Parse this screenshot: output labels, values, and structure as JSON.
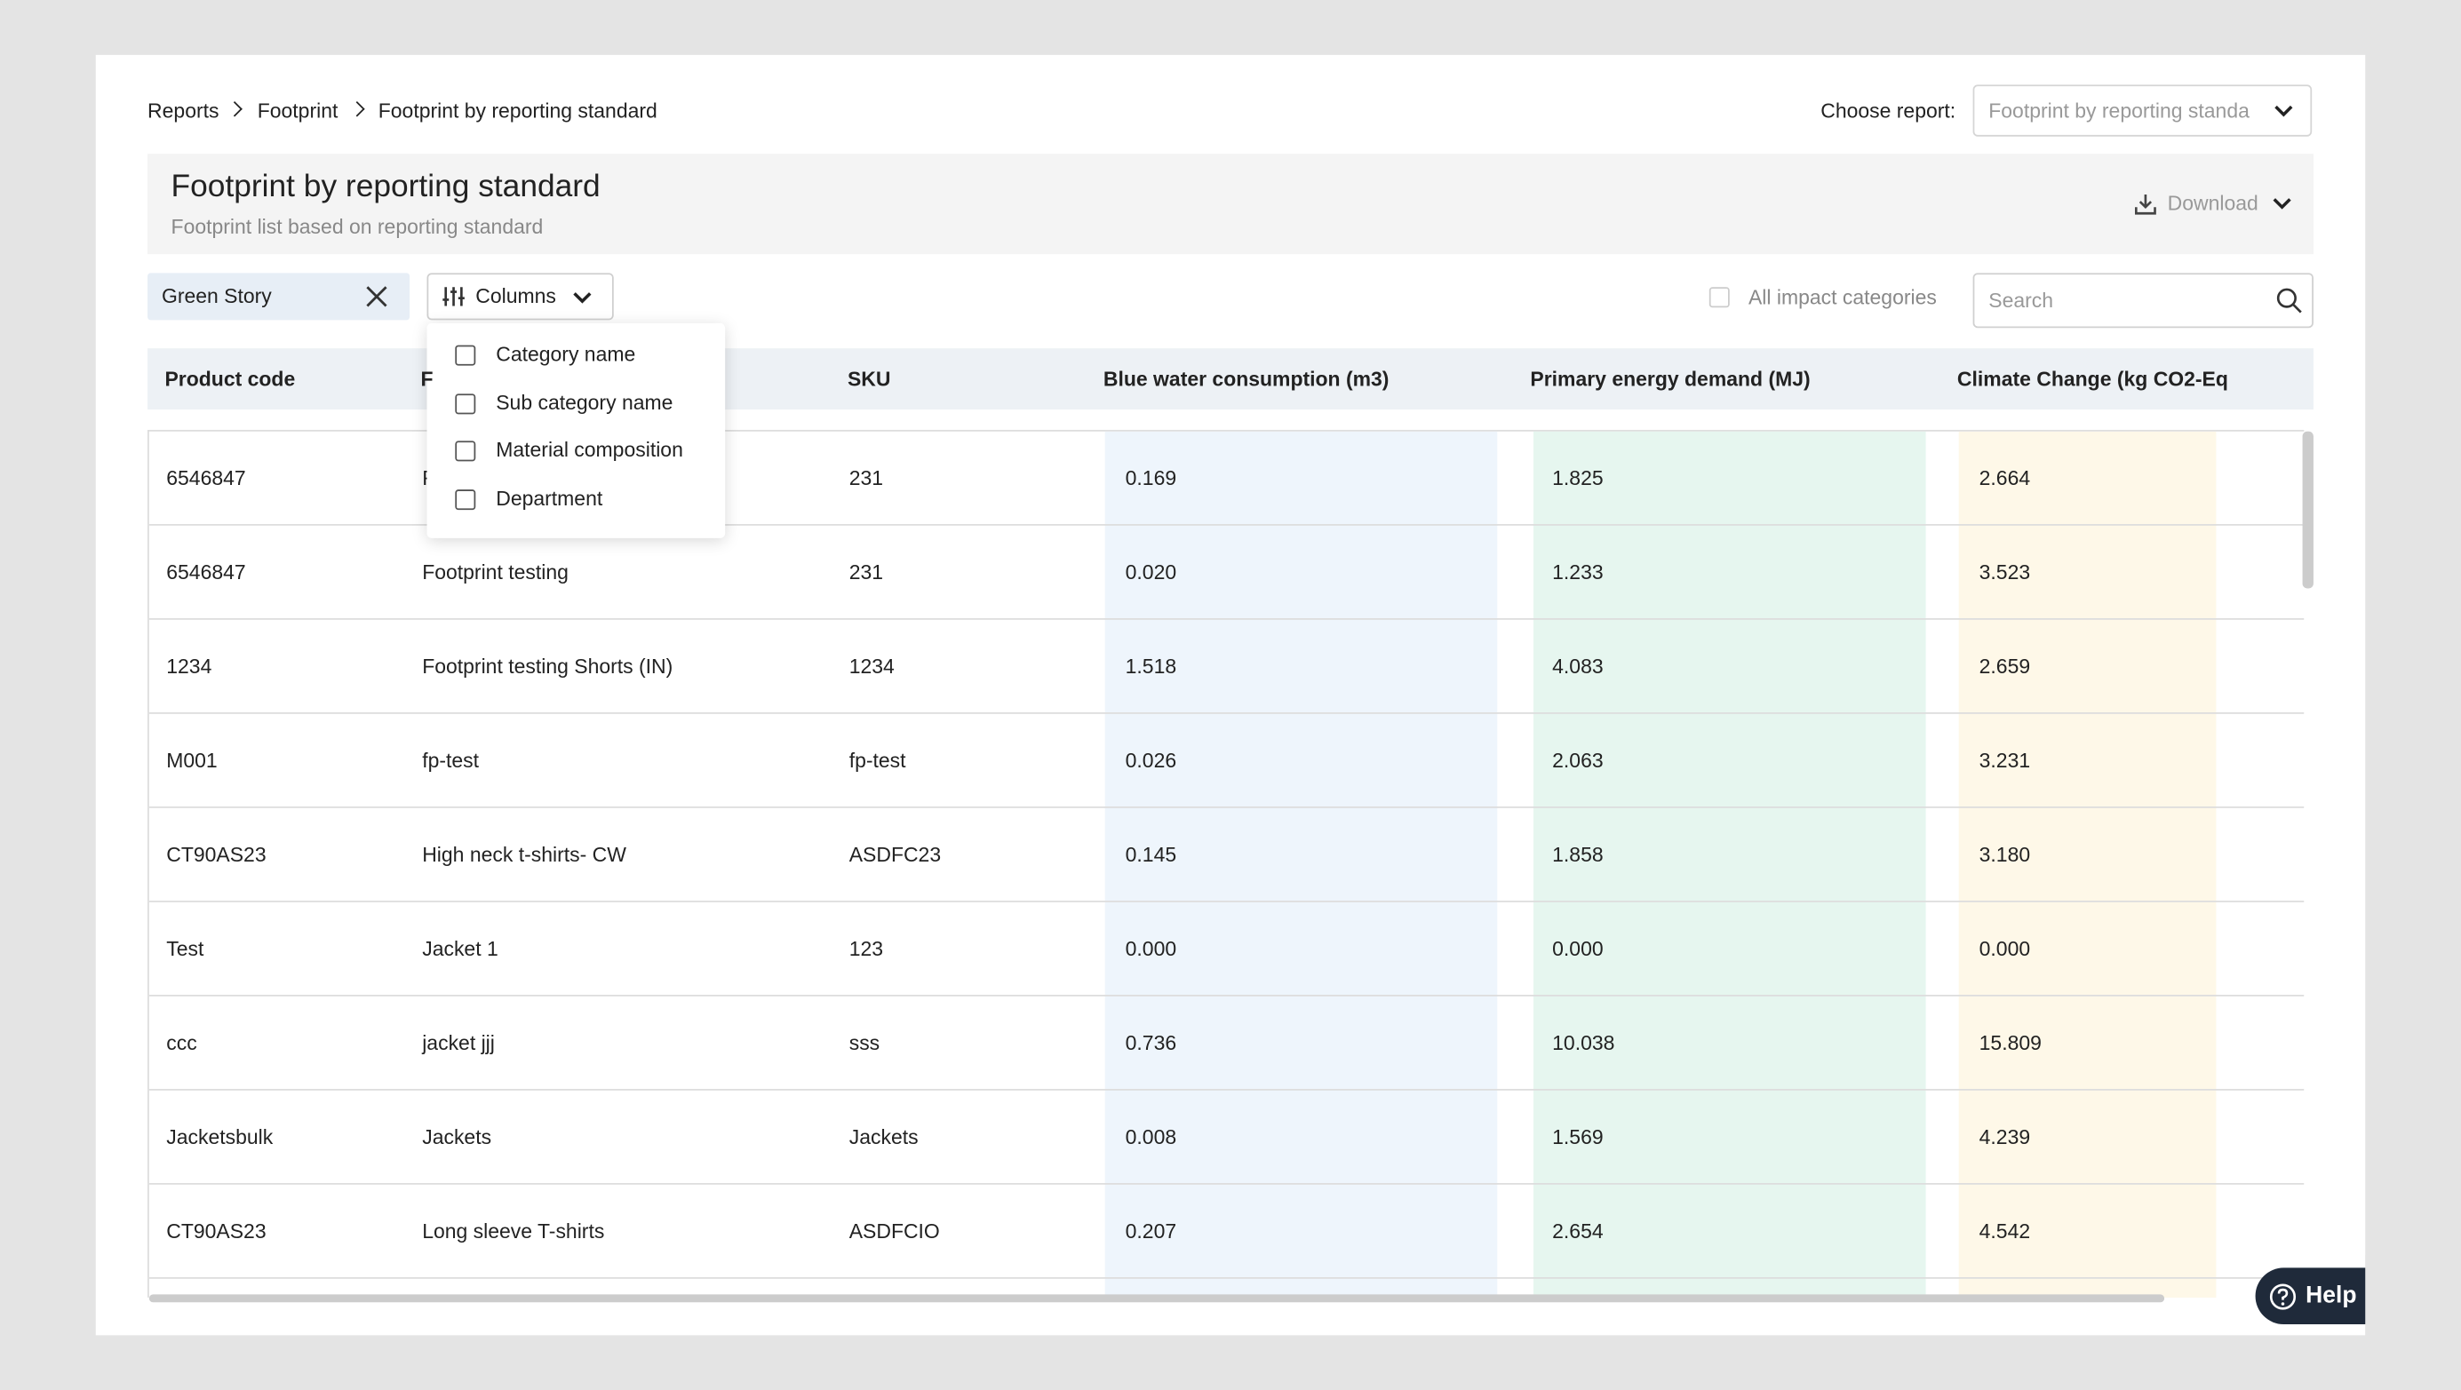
{
  "breadcrumb": [
    "Reports",
    "Footprint",
    "Footprint by reporting standard"
  ],
  "choose_report": {
    "label": "Choose report:",
    "value": "Footprint by reporting standa"
  },
  "header": {
    "title": "Footprint by reporting standard",
    "subtitle": "Footprint list based on reporting standard",
    "download": "Download"
  },
  "filter_chip": "Green Story",
  "columns_button": "Columns",
  "columns_menu": [
    "Category name",
    "Sub category name",
    "Material composition",
    "Department"
  ],
  "all_impact_categories": "All impact categories",
  "search_placeholder": "Search",
  "table": {
    "headers": [
      "Product code",
      "F",
      "SKU",
      "Blue water consumption (m3)",
      "Primary energy demand (MJ)",
      "Climate Change (kg CO2-Eq"
    ],
    "rows": [
      [
        "6546847",
        "F",
        "231",
        "0.169",
        "1.825",
        "2.664"
      ],
      [
        "6546847",
        "Footprint testing",
        "231",
        "0.020",
        "1.233",
        "3.523"
      ],
      [
        "1234",
        "Footprint testing Shorts (IN)",
        "1234",
        "1.518",
        "4.083",
        "2.659"
      ],
      [
        "M001",
        "fp-test",
        "fp-test",
        "0.026",
        "2.063",
        "3.231"
      ],
      [
        "CT90AS23",
        "High neck t-shirts- CW",
        "ASDFC23",
        "0.145",
        "1.858",
        "3.180"
      ],
      [
        "Test",
        "Jacket 1",
        "123",
        "0.000",
        "0.000",
        "0.000"
      ],
      [
        "ccc",
        "jacket jjj",
        "sss",
        "0.736",
        "10.038",
        "15.809"
      ],
      [
        "Jacketsbulk",
        "Jackets",
        "Jackets",
        "0.008",
        "1.569",
        "4.239"
      ],
      [
        "CT90AS23",
        "Long sleeve T-shirts",
        "ASDFCIO",
        "0.207",
        "2.654",
        "4.542"
      ]
    ]
  },
  "help": "Help"
}
